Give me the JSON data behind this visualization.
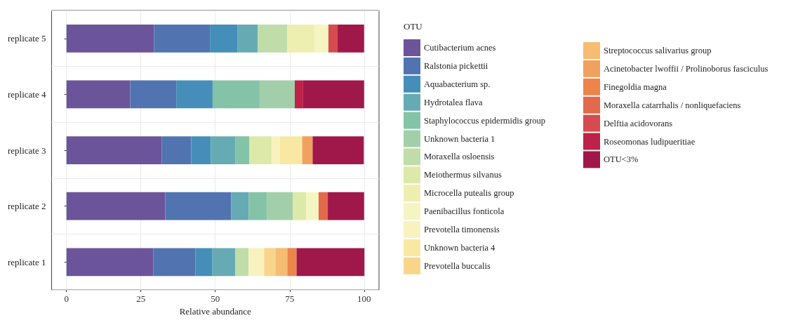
{
  "chart_data": {
    "type": "bar",
    "orientation": "horizontal",
    "stacked": true,
    "xlabel": "Relative abundance",
    "legend_title": "OTU",
    "legend": "right",
    "grid": true,
    "categories": [
      "replicate 5",
      "replicate 4",
      "replicate 3",
      "replicate 2",
      "replicate 1"
    ],
    "xlim": [
      -5,
      105
    ],
    "xticks": [
      0,
      25,
      50,
      75,
      100
    ],
    "series": [
      {
        "name": "Cutibacterium acnes",
        "color": "#6b5499",
        "values": [
          29.4,
          21.4,
          32.0,
          33.2,
          29.2
        ]
      },
      {
        "name": "Ralstonia pickettii",
        "color": "#5174b0",
        "values": [
          18.8,
          15.5,
          9.9,
          22.1,
          14.1
        ]
      },
      {
        "name": "Aquabacterium sp.",
        "color": "#458eba",
        "values": [
          9.2,
          12.2,
          6.6,
          null,
          5.6
        ]
      },
      {
        "name": "Hydrotalea flava",
        "color": "#66aab4",
        "values": [
          6.8,
          null,
          8.2,
          5.9,
          7.8
        ]
      },
      {
        "name": "Staphylococcus epidermidis group",
        "color": "#84c3a8",
        "values": [
          null,
          15.8,
          4.7,
          6.1,
          null
        ]
      },
      {
        "name": "Unknown bacteria 1",
        "color": "#a2cfa9",
        "values": [
          null,
          11.8,
          null,
          8.7,
          null
        ]
      },
      {
        "name": "Moraxella osloensis",
        "color": "#c0dca9",
        "values": [
          9.9,
          null,
          null,
          null,
          4.5
        ]
      },
      {
        "name": "Meiothermus silvanus",
        "color": "#dde9a9",
        "values": [
          null,
          null,
          7.5,
          4.5,
          null
        ]
      },
      {
        "name": "Microcella putealis group",
        "color": "#eeeeb1",
        "values": [
          9.2,
          null,
          null,
          null,
          null
        ]
      },
      {
        "name": "Paenibacillus fonticola",
        "color": "#f5f5c2",
        "values": [
          4.7,
          null,
          null,
          4.2,
          null
        ]
      },
      {
        "name": "Prevotella timonensis",
        "color": "#f9f2be",
        "values": [
          null,
          null,
          2.8,
          null,
          5.2
        ]
      },
      {
        "name": "Unknown bacteria 4",
        "color": "#f9e8a3",
        "values": [
          null,
          null,
          7.5,
          null,
          null
        ]
      },
      {
        "name": "Prevotella buccalis",
        "color": "#f8d58b",
        "values": [
          null,
          null,
          null,
          null,
          3.8
        ]
      },
      {
        "name": "Streptococcus salivarius group",
        "color": "#f6bc72",
        "values": [
          null,
          null,
          null,
          null,
          4.0
        ]
      },
      {
        "name": "Acinetobacter lwoffii / Prolinoborus fasciculus",
        "color": "#f1a15d",
        "values": [
          null,
          null,
          3.5,
          null,
          null
        ]
      },
      {
        "name": "Finegoldia magna",
        "color": "#ec854a",
        "values": [
          null,
          null,
          null,
          null,
          3.1
        ]
      },
      {
        "name": "Moraxella catarrhalis / nonliquefaciens",
        "color": "#e2694c",
        "values": [
          null,
          null,
          null,
          3.1,
          null
        ]
      },
      {
        "name": "Delftia acidovorans",
        "color": "#d54b50",
        "values": [
          3.1,
          null,
          null,
          null,
          null
        ]
      },
      {
        "name": "Roseomonas ludipueritiae",
        "color": "#be2149",
        "values": [
          null,
          2.8,
          null,
          null,
          null
        ]
      },
      {
        "name": "OTU<3%",
        "color": "#a0184a",
        "values": [
          8.9,
          20.5,
          17.2,
          12.2,
          22.8
        ]
      }
    ]
  }
}
